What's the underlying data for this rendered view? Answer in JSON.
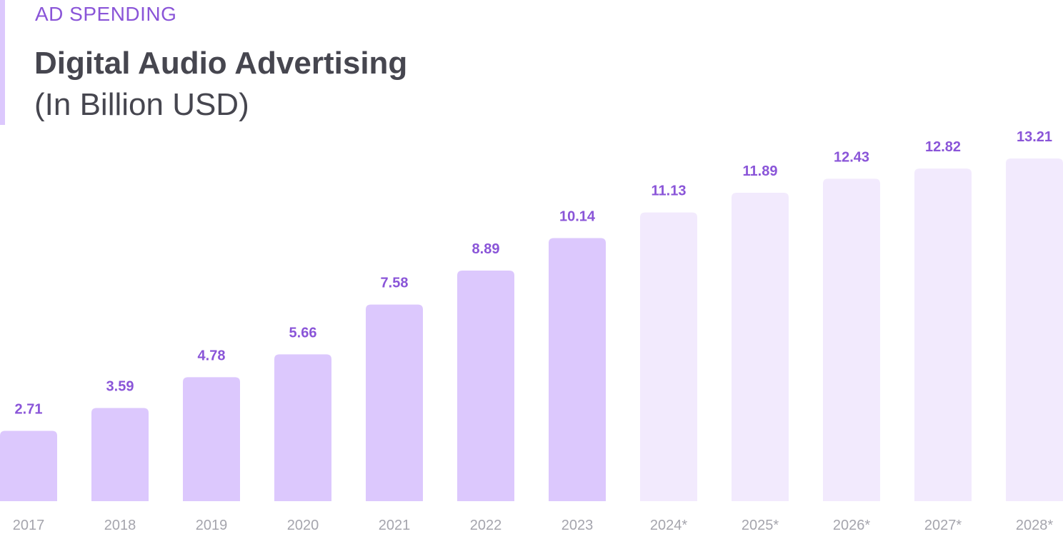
{
  "header": {
    "eyebrow": "AD SPENDING",
    "title": "Digital Audio Advertising",
    "subtitle": "(In Billion USD)"
  },
  "colors": {
    "accent": "#8a55d8",
    "actual_bar": "#dcc8fd",
    "forecast_bar": "#f2eafd",
    "title": "#46464f",
    "tick": "#a5a5ad"
  },
  "chart_data": {
    "type": "bar",
    "title": "Digital Audio Advertising",
    "ylabel": "(In Billion USD)",
    "categories": [
      "2017",
      "2018",
      "2019",
      "2020",
      "2021",
      "2022",
      "2023",
      "2024*",
      "2025*",
      "2026*",
      "2027*",
      "2028*"
    ],
    "values": [
      2.71,
      3.59,
      4.78,
      5.66,
      7.58,
      8.89,
      10.14,
      11.13,
      11.89,
      12.43,
      12.82,
      13.21
    ],
    "value_labels": [
      "2.71",
      "3.59",
      "4.78",
      "5.66",
      "7.58",
      "8.89",
      "10.14",
      "11.13",
      "11.89",
      "12.43",
      "12.82",
      "13.21"
    ],
    "forecast": [
      false,
      false,
      false,
      false,
      false,
      false,
      false,
      true,
      true,
      true,
      true,
      true
    ],
    "ylim": [
      0,
      13.21
    ],
    "grid": false,
    "legend": "none"
  }
}
